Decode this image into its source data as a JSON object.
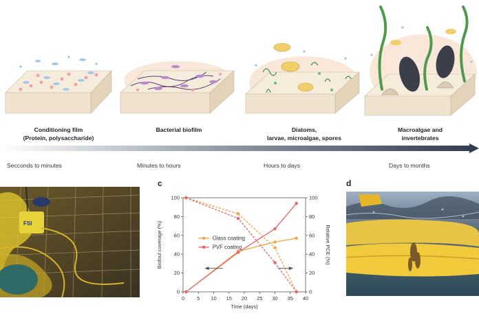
{
  "stages": [
    {
      "label_line1": "Conditioning film",
      "label_line2": "(Protein, polysaccharide)",
      "time": "Secconds to minutes"
    },
    {
      "label_line1": "Bacterial biofilm",
      "label_line2": "",
      "time": "Minutes to hours"
    },
    {
      "label_line1": "Diatoms,",
      "label_line2": "larvae, microalgae, spores",
      "time": "Hours to days"
    },
    {
      "label_line1": "Macroalgae and",
      "label_line2": "invertebrates",
      "time": "Days to months"
    }
  ],
  "panels": {
    "c": "c",
    "d": "d"
  },
  "photo_b": {
    "sign_text": "FSI"
  },
  "colors": {
    "glass": "#f0a94e",
    "pvf": "#e8696b",
    "arrow": "#2f3a4c",
    "deck": "#efe3cf"
  },
  "chart_data": {
    "type": "line",
    "xlabel": "Time (days)",
    "ylabel_left": "Biofoul coverage (%)",
    "ylabel_right": "Relative PCE (%)",
    "xlim": [
      0,
      40
    ],
    "ylim": [
      0,
      100
    ],
    "xticks": [
      "0",
      "5",
      "10",
      "15",
      "20",
      "25",
      "30",
      "35",
      "40"
    ],
    "yticks": [
      "0",
      "20",
      "40",
      "60",
      "80",
      "100"
    ],
    "legend": [
      "Glass coating",
      "PVF coating"
    ],
    "legend_position": "center-left",
    "series": [
      {
        "name": "Glass coating",
        "axis": "left",
        "style": "solid",
        "x": [
          1,
          18,
          30,
          37
        ],
        "y": [
          0,
          43,
          53,
          57
        ]
      },
      {
        "name": "PVF coating",
        "axis": "left",
        "style": "solid",
        "x": [
          1,
          18,
          30,
          37
        ],
        "y": [
          0,
          42,
          67,
          94
        ]
      },
      {
        "name": "Glass coating",
        "axis": "right",
        "style": "dashed",
        "x": [
          1,
          18,
          30,
          37
        ],
        "y": [
          100,
          83,
          47,
          0
        ]
      },
      {
        "name": "PVF coating",
        "axis": "right",
        "style": "dashed",
        "x": [
          1,
          18,
          30,
          37
        ],
        "y": [
          100,
          78,
          31,
          0
        ]
      }
    ]
  }
}
